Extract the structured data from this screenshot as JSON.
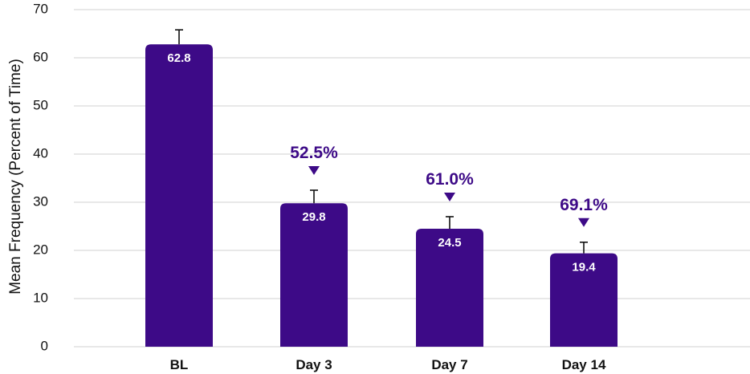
{
  "chart_data": {
    "type": "bar",
    "categories": [
      "BL",
      "Day 3",
      "Day 7",
      "Day 14"
    ],
    "values": [
      62.8,
      29.8,
      24.5,
      19.4
    ],
    "value_labels": [
      "62.8",
      "29.8",
      "24.5",
      "19.4"
    ],
    "error_upper": [
      65.8,
      32.5,
      27.0,
      21.7
    ],
    "annotations": [
      "",
      "52.5%",
      "61.0%",
      "69.1%"
    ],
    "title": "",
    "xlabel": "",
    "ylabel": "Mean Frequency (Percent of Time)",
    "ylim": [
      0,
      70
    ],
    "yticks": [
      0,
      10,
      20,
      30,
      40,
      50,
      60,
      70
    ],
    "ytick_labels": [
      "0",
      "10",
      "20",
      "30",
      "40",
      "50",
      "60",
      "70"
    ],
    "grid": true,
    "legend": "none",
    "colors": {
      "bar": "#3d0a87",
      "annotation": "#3d0a87",
      "error_bar": "#111111",
      "grid": "#d0d0d0"
    }
  }
}
